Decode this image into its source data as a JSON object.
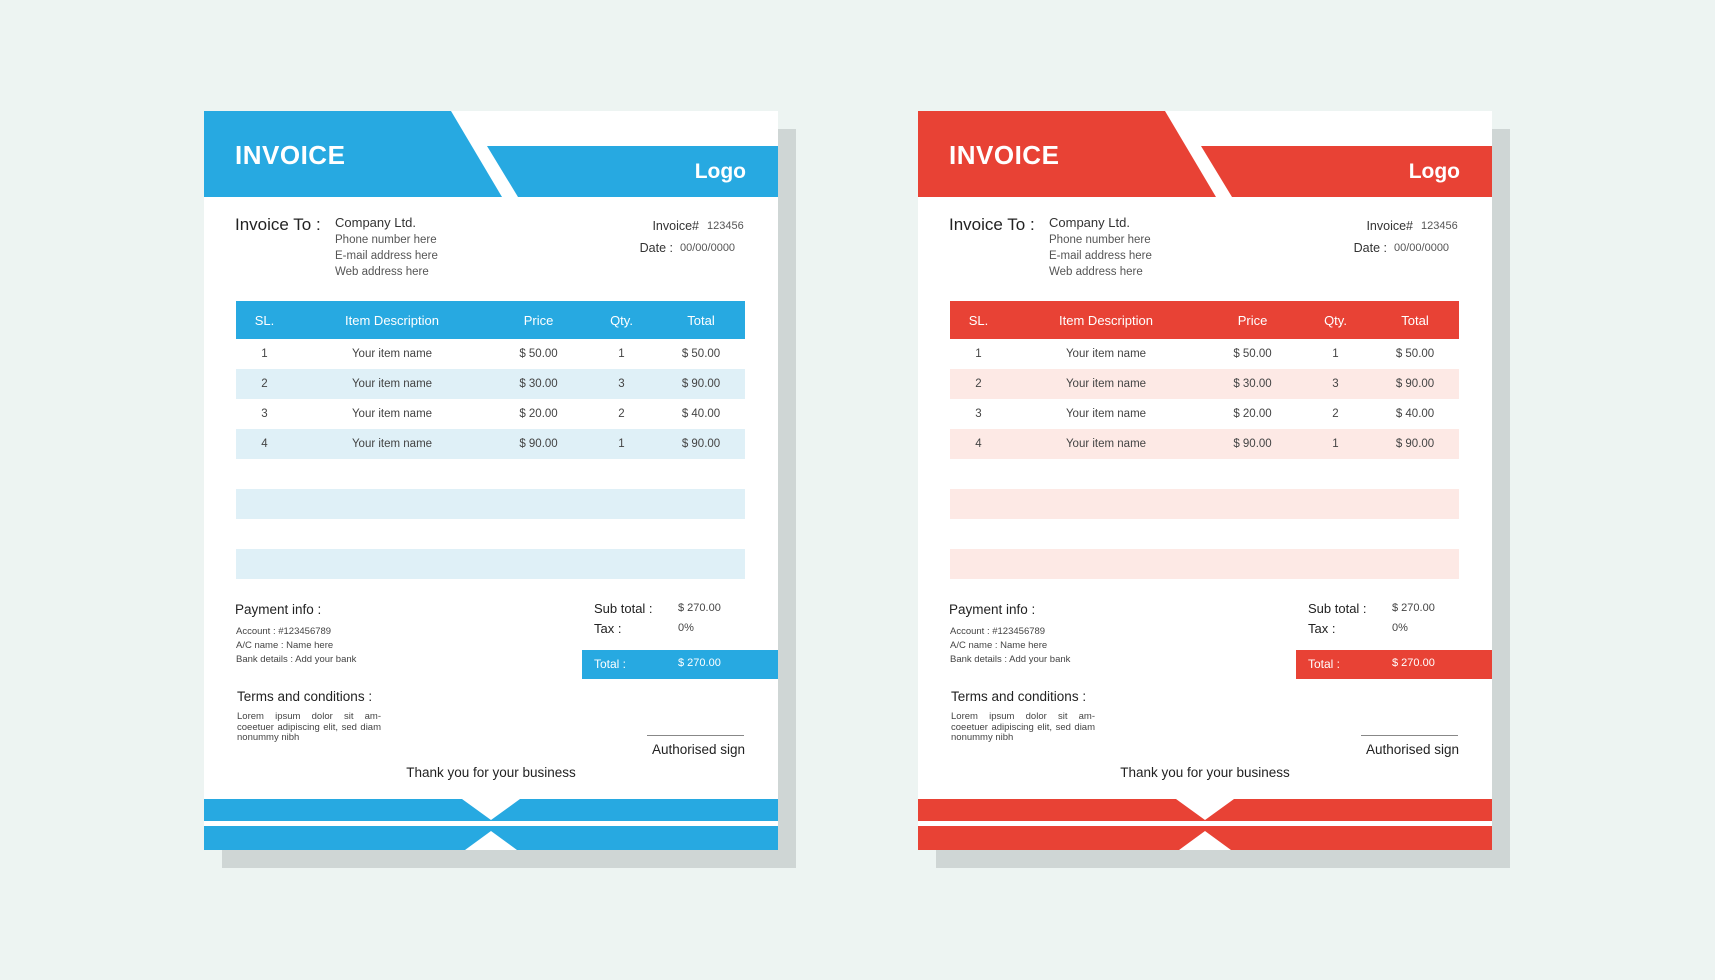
{
  "invoices": [
    {
      "theme": "blue",
      "accent": "#27a9e1",
      "light": "#dff0f7",
      "title": "INVOICE",
      "logo": "Logo",
      "to_label": "Invoice To :",
      "company": "Company Ltd.",
      "phone": "Phone number here",
      "email": "E-mail address here",
      "web": "Web address here",
      "invoice_no_label": "Invoice#",
      "invoice_no": "123456",
      "date_label": "Date :",
      "date": "00/00/0000",
      "columns": [
        "SL.",
        "Item Description",
        "Price",
        "Qty.",
        "Total"
      ],
      "items": [
        {
          "sl": "1",
          "desc": "Your item name",
          "price": "$ 50.00",
          "qty": "1",
          "total": "$ 50.00"
        },
        {
          "sl": "2",
          "desc": "Your item name",
          "price": "$ 30.00",
          "qty": "3",
          "total": "$ 90.00"
        },
        {
          "sl": "3",
          "desc": "Your item name",
          "price": "$ 20.00",
          "qty": "2",
          "total": "$ 40.00"
        },
        {
          "sl": "4",
          "desc": "Your item name",
          "price": "$ 90.00",
          "qty": "1",
          "total": "$ 90.00"
        }
      ],
      "payment_title": "Payment info :",
      "account": "Account :   #123456789",
      "ac_name": "A/C name :  Name here",
      "bank": "Bank details :  Add your bank",
      "subtotal_label": "Sub total :",
      "subtotal": "$ 270.00",
      "tax_label": "Tax :",
      "tax": "0%",
      "total_label": "Total :",
      "total": "$ 270.00",
      "terms_title": "Terms and conditions :",
      "terms_text": "Lorem ipsum dolor sit am-coeetuer adipiscing elit, sed diam nonummy nibh",
      "sign": "Authorised sign",
      "thanks": "Thank you for your business"
    },
    {
      "theme": "red",
      "accent": "#e84235",
      "light": "#fde9e5",
      "title": "INVOICE",
      "logo": "Logo",
      "to_label": "Invoice To :",
      "company": "Company Ltd.",
      "phone": "Phone number here",
      "email": "E-mail address here",
      "web": "Web address here",
      "invoice_no_label": "Invoice#",
      "invoice_no": "123456",
      "date_label": "Date :",
      "date": "00/00/0000",
      "columns": [
        "SL.",
        "Item Description",
        "Price",
        "Qty.",
        "Total"
      ],
      "items": [
        {
          "sl": "1",
          "desc": "Your item name",
          "price": "$ 50.00",
          "qty": "1",
          "total": "$ 50.00"
        },
        {
          "sl": "2",
          "desc": "Your item name",
          "price": "$ 30.00",
          "qty": "3",
          "total": "$ 90.00"
        },
        {
          "sl": "3",
          "desc": "Your item name",
          "price": "$ 20.00",
          "qty": "2",
          "total": "$ 40.00"
        },
        {
          "sl": "4",
          "desc": "Your item name",
          "price": "$ 90.00",
          "qty": "1",
          "total": "$ 90.00"
        }
      ],
      "payment_title": "Payment info :",
      "account": "Account :   #123456789",
      "ac_name": "A/C name :  Name here",
      "bank": "Bank details :  Add your bank",
      "subtotal_label": "Sub total :",
      "subtotal": "$ 270.00",
      "tax_label": "Tax :",
      "tax": "0%",
      "total_label": "Total :",
      "total": "$ 270.00",
      "terms_title": "Terms and conditions :",
      "terms_text": "Lorem ipsum dolor sit am-coeetuer adipiscing elit, sed diam nonummy nibh",
      "sign": "Authorised sign",
      "thanks": "Thank you for your business"
    }
  ]
}
